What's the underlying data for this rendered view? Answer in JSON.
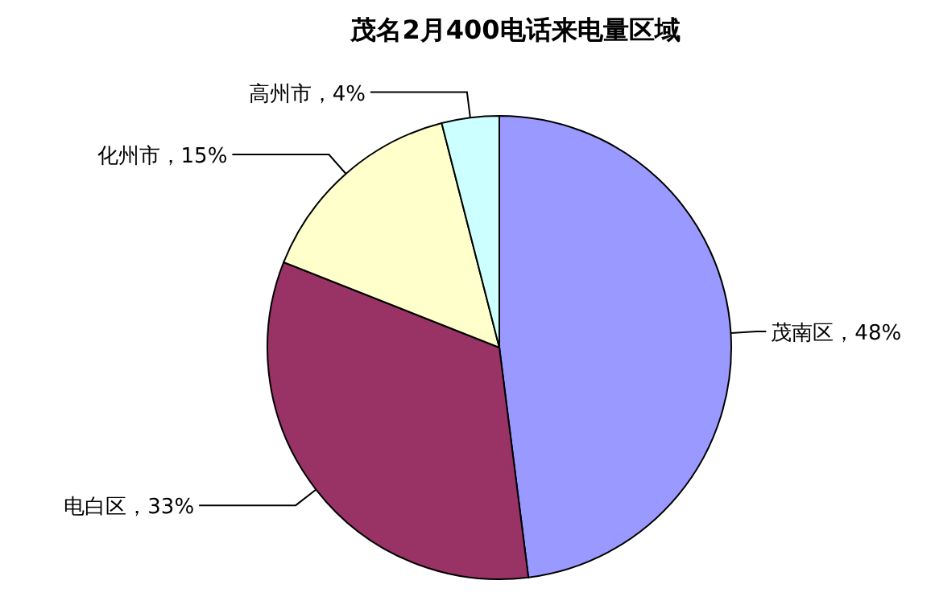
{
  "chart_data": {
    "type": "pie",
    "title": "茂名2月400电话来电量区域",
    "categories": [
      "茂南区",
      "电白区",
      "化州市",
      "高州市"
    ],
    "values": [
      48,
      33,
      15,
      4
    ],
    "value_labels": [
      "48%",
      "33%",
      "15%",
      "4%"
    ],
    "colors": [
      "#9999ff",
      "#993366",
      "#ffffcc",
      "#ccffff"
    ],
    "legend": false
  }
}
